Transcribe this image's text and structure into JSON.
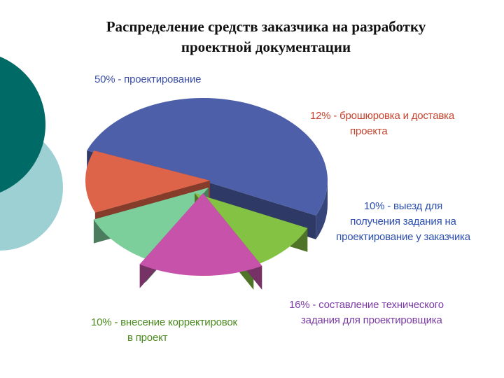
{
  "slide": {
    "title_lines": [
      "Распределение средств заказчика на разработку",
      "проектной документации"
    ],
    "decor_colors": {
      "dark": "#006b66",
      "light": "#9dd0d3"
    }
  },
  "chart_data": {
    "type": "pie",
    "style": "3d-exploded",
    "title": "Распределение средств заказчика на разработку проектной документации",
    "slices": [
      {
        "value": 50,
        "label_lines": [
          "50% - проектирование"
        ],
        "color": "#4d5fa8",
        "label_color": "#3b4fa5"
      },
      {
        "value": 12,
        "label_lines": [
          "12% - брошюровка и доставка",
          "проекта"
        ],
        "color": "#dd6448",
        "label_color": "#c8432d"
      },
      {
        "value": 10,
        "label_lines": [
          "10% - выезд для",
          "получения задания на",
          "проектирование у заказчика"
        ],
        "color": "#7ccf9b",
        "label_color": "#2d4fb0"
      },
      {
        "value": 16,
        "label_lines": [
          "16% - составление технического",
          "задания для проектировщика"
        ],
        "color": "#c653a9",
        "label_color": "#7a3ca3"
      },
      {
        "value": 10,
        "label_lines": [
          "10% - внесение корректировок",
          "в проект"
        ],
        "color": "#83c242",
        "label_color": "#4a8a1e"
      }
    ]
  }
}
